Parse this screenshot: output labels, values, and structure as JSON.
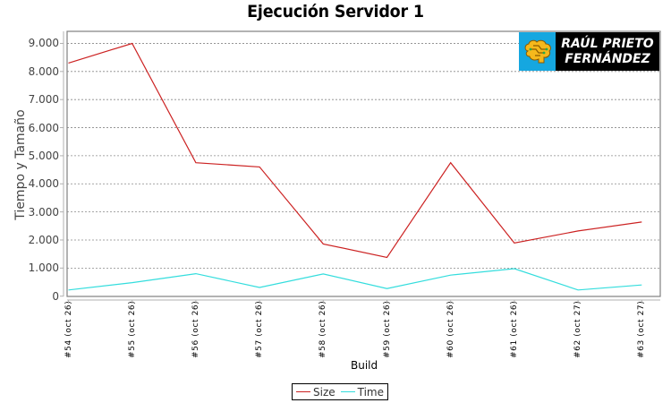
{
  "title": "Ejecución Servidor 1",
  "logo": {
    "line1": "RAÚL PRIETO",
    "line2": "FERNÁNDEZ",
    "icon": "brain-circuit-icon",
    "icon_bg": "#15a7e0",
    "text_bg": "#000000"
  },
  "legend": {
    "items": [
      {
        "label": "Size",
        "color": "#cc2222"
      },
      {
        "label": "Time",
        "color": "#33dddd"
      }
    ]
  },
  "chart_data": {
    "type": "line",
    "title": "Ejecución Servidor 1",
    "xlabel": "Build",
    "ylabel": "Tiempo y Tamaño",
    "ylim": [
      0,
      9400
    ],
    "yticks": [
      0,
      1000,
      2000,
      3000,
      4000,
      5000,
      6000,
      7000,
      8000,
      9000
    ],
    "ytick_labels": [
      "0",
      "1.000",
      "2.000",
      "3.000",
      "4.000",
      "5.000",
      "6.000",
      "7.000",
      "8.000",
      "9.000"
    ],
    "grid": true,
    "legend_position": "bottom",
    "categories": [
      "#54 (oct 26)",
      "#55 (oct 26)",
      "#56 (oct 26)",
      "#57 (oct 26)",
      "#58 (oct 26)",
      "#59 (oct 26)",
      "#60 (oct 26)",
      "#61 (oct 26)",
      "#62 (oct 27)",
      "#63 (oct 27)"
    ],
    "series": [
      {
        "name": "Size",
        "color": "#cc2222",
        "values": [
          8300,
          9000,
          4750,
          4600,
          1860,
          1380,
          4750,
          1890,
          2320,
          2640
        ]
      },
      {
        "name": "Time",
        "color": "#33dddd",
        "values": [
          220,
          480,
          800,
          310,
          790,
          270,
          750,
          980,
          220,
          400
        ]
      }
    ]
  }
}
